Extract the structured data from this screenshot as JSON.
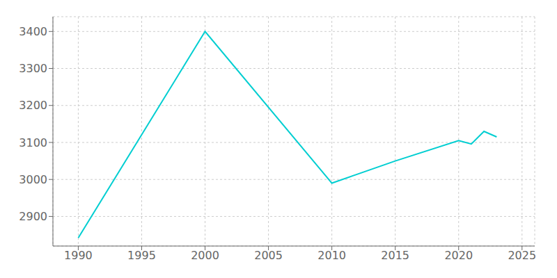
{
  "chart_data": {
    "type": "line",
    "x": [
      1990,
      2000,
      2010,
      2015,
      2020,
      2021,
      2022,
      2023
    ],
    "values": [
      2842,
      3400,
      2990,
      3050,
      3105,
      3096,
      3130,
      3115
    ],
    "color": "#00CED1",
    "xlim": [
      1988,
      2026
    ],
    "ylim": [
      2820,
      3440
    ],
    "xticks": [
      1990,
      1995,
      2000,
      2005,
      2010,
      2015,
      2020,
      2025
    ],
    "yticks": [
      2900,
      3000,
      3100,
      3200,
      3300,
      3400
    ],
    "grid": true
  }
}
